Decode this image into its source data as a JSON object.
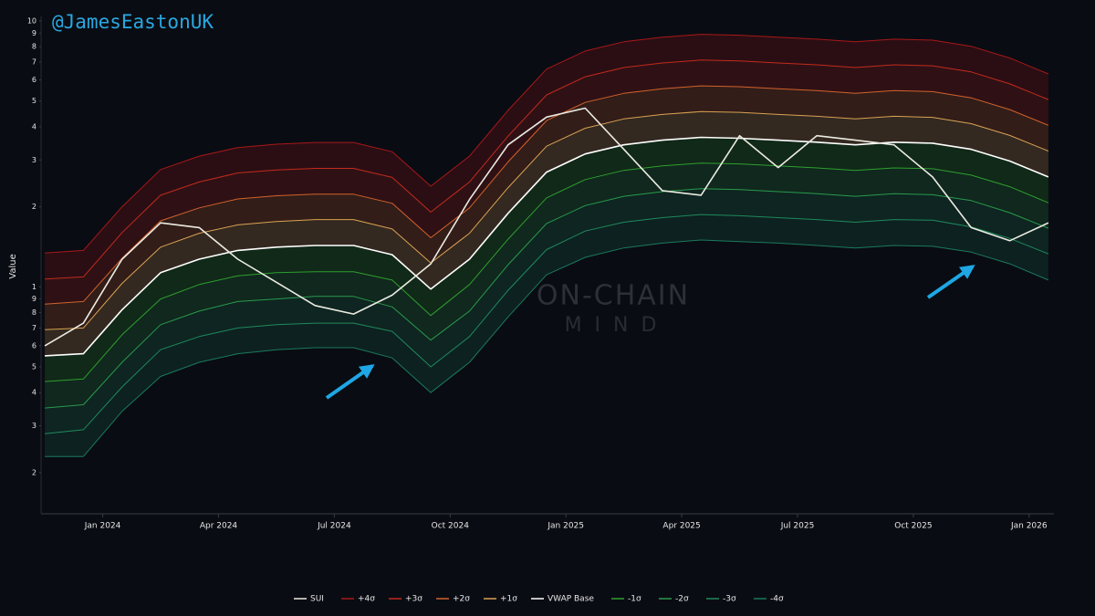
{
  "chart_data": {
    "type": "line",
    "title": "@JamesEastonUK",
    "y_label": "Value",
    "annotations": [
      "ON-CHAIN",
      "MIND"
    ],
    "log_scale": true,
    "grid": false,
    "legend": "bottom",
    "xlim": [
      "2023-11",
      "2026-01"
    ],
    "ylim": [
      0.14,
      10.4
    ],
    "xticks": [
      {
        "value": "2024-01",
        "label": "Jan 2024"
      },
      {
        "value": "2024-04",
        "label": "Apr 2024"
      },
      {
        "value": "2024-07",
        "label": "Jul 2024"
      },
      {
        "value": "2024-10",
        "label": "Oct 2024"
      },
      {
        "value": "2025-01",
        "label": "Jan 2025"
      },
      {
        "value": "2025-04",
        "label": "Apr 2025"
      },
      {
        "value": "2025-07",
        "label": "Jul 2025"
      },
      {
        "value": "2025-10",
        "label": "Oct 2025"
      },
      {
        "value": "2026-01",
        "label": "Jan 2026"
      }
    ],
    "yticks": [
      10,
      9,
      8,
      7,
      6,
      5,
      4,
      3,
      2,
      1,
      {
        "value": 0.9,
        "label": "9"
      },
      {
        "value": 0.8,
        "label": "8"
      },
      {
        "value": 0.7,
        "label": "7"
      },
      {
        "value": 0.6,
        "label": "6"
      },
      {
        "value": 0.5,
        "label": "5"
      },
      {
        "value": 0.4,
        "label": "4"
      },
      {
        "value": 0.3,
        "label": "3"
      },
      {
        "value": 0.2,
        "label": "2"
      }
    ],
    "x": [
      "2023-11",
      "2023-12",
      "2024-01",
      "2024-02",
      "2024-03",
      "2024-04",
      "2024-05",
      "2024-06",
      "2024-07",
      "2024-08",
      "2024-09",
      "2024-10",
      "2024-11",
      "2024-12",
      "2025-01",
      "2025-02",
      "2025-03",
      "2025-04",
      "2025-05",
      "2025-06",
      "2025-07",
      "2025-08",
      "2025-09",
      "2025-10",
      "2025-11",
      "2025-12",
      "2026-01"
    ],
    "series": [
      {
        "name": "SUI",
        "color": "#ecebe2",
        "values": [
          0.6,
          0.73,
          1.27,
          1.74,
          1.67,
          1.27,
          1.04,
          0.85,
          0.79,
          0.93,
          1.22,
          2.13,
          3.42,
          4.35,
          4.7,
          3.29,
          2.3,
          2.21,
          3.7,
          2.81,
          3.7,
          3.56,
          3.42,
          2.59,
          1.67,
          1.49,
          1.74
        ]
      },
      {
        "name": "+4σ",
        "color": "#a81818",
        "values": [
          1.34,
          1.37,
          2.0,
          2.76,
          3.1,
          3.34,
          3.44,
          3.49,
          3.49,
          3.22,
          2.39,
          3.1,
          4.61,
          6.59,
          7.71,
          8.35,
          8.69,
          8.91,
          8.84,
          8.69,
          8.54,
          8.35,
          8.54,
          8.47,
          8.03,
          7.25,
          6.32
        ]
      },
      {
        "name": "+3σ",
        "color": "#c32a1c",
        "values": [
          1.07,
          1.09,
          1.6,
          2.21,
          2.48,
          2.68,
          2.75,
          2.79,
          2.79,
          2.58,
          1.91,
          2.48,
          3.69,
          5.27,
          6.17,
          6.68,
          6.95,
          7.13,
          7.07,
          6.95,
          6.84,
          6.68,
          6.84,
          6.78,
          6.43,
          5.8,
          5.06
        ]
      },
      {
        "name": "+2σ",
        "color": "#d2622c",
        "values": [
          0.86,
          0.88,
          1.28,
          1.77,
          1.98,
          2.14,
          2.2,
          2.23,
          2.23,
          2.06,
          1.53,
          1.98,
          2.95,
          4.22,
          4.94,
          5.34,
          5.56,
          5.7,
          5.66,
          5.56,
          5.47,
          5.34,
          5.47,
          5.42,
          5.14,
          4.64,
          4.05
        ]
      },
      {
        "name": "+1σ",
        "color": "#d9a254",
        "values": [
          0.69,
          0.7,
          1.03,
          1.41,
          1.59,
          1.71,
          1.76,
          1.79,
          1.79,
          1.65,
          1.23,
          1.59,
          2.36,
          3.38,
          3.95,
          4.28,
          4.45,
          4.56,
          4.53,
          4.45,
          4.38,
          4.28,
          4.38,
          4.34,
          4.11,
          3.71,
          3.24
        ]
      },
      {
        "name": "VWAP Base",
        "color": "#ffffff",
        "values": [
          0.55,
          0.56,
          0.82,
          1.13,
          1.27,
          1.37,
          1.41,
          1.43,
          1.43,
          1.32,
          0.98,
          1.27,
          1.89,
          2.7,
          3.16,
          3.42,
          3.56,
          3.65,
          3.62,
          3.56,
          3.5,
          3.42,
          3.5,
          3.47,
          3.29,
          2.97,
          2.59
        ]
      },
      {
        "name": "-1σ",
        "color": "#2f9e2f",
        "values": [
          0.44,
          0.45,
          0.66,
          0.9,
          1.02,
          1.1,
          1.13,
          1.14,
          1.14,
          1.06,
          0.78,
          1.02,
          1.51,
          2.16,
          2.53,
          2.74,
          2.85,
          2.92,
          2.9,
          2.85,
          2.8,
          2.74,
          2.8,
          2.78,
          2.63,
          2.38,
          2.07
        ]
      },
      {
        "name": "-2σ",
        "color": "#2a9a4c",
        "values": [
          0.35,
          0.36,
          0.52,
          0.72,
          0.81,
          0.88,
          0.9,
          0.92,
          0.92,
          0.84,
          0.63,
          0.81,
          1.21,
          1.73,
          2.02,
          2.19,
          2.28,
          2.34,
          2.32,
          2.28,
          2.24,
          2.19,
          2.24,
          2.22,
          2.11,
          1.9,
          1.66
        ]
      },
      {
        "name": "-3σ",
        "color": "#1f8a5c",
        "values": [
          0.28,
          0.29,
          0.42,
          0.58,
          0.65,
          0.7,
          0.72,
          0.73,
          0.73,
          0.68,
          0.5,
          0.65,
          0.97,
          1.38,
          1.62,
          1.75,
          1.82,
          1.87,
          1.85,
          1.82,
          1.79,
          1.75,
          1.79,
          1.78,
          1.68,
          1.52,
          1.33
        ]
      },
      {
        "name": "-4σ",
        "color": "#1a7a5c",
        "values": [
          0.23,
          0.23,
          0.34,
          0.46,
          0.52,
          0.56,
          0.58,
          0.59,
          0.59,
          0.54,
          0.4,
          0.52,
          0.77,
          1.11,
          1.29,
          1.4,
          1.46,
          1.5,
          1.48,
          1.46,
          1.43,
          1.4,
          1.43,
          1.42,
          1.35,
          1.22,
          1.06
        ]
      }
    ]
  }
}
